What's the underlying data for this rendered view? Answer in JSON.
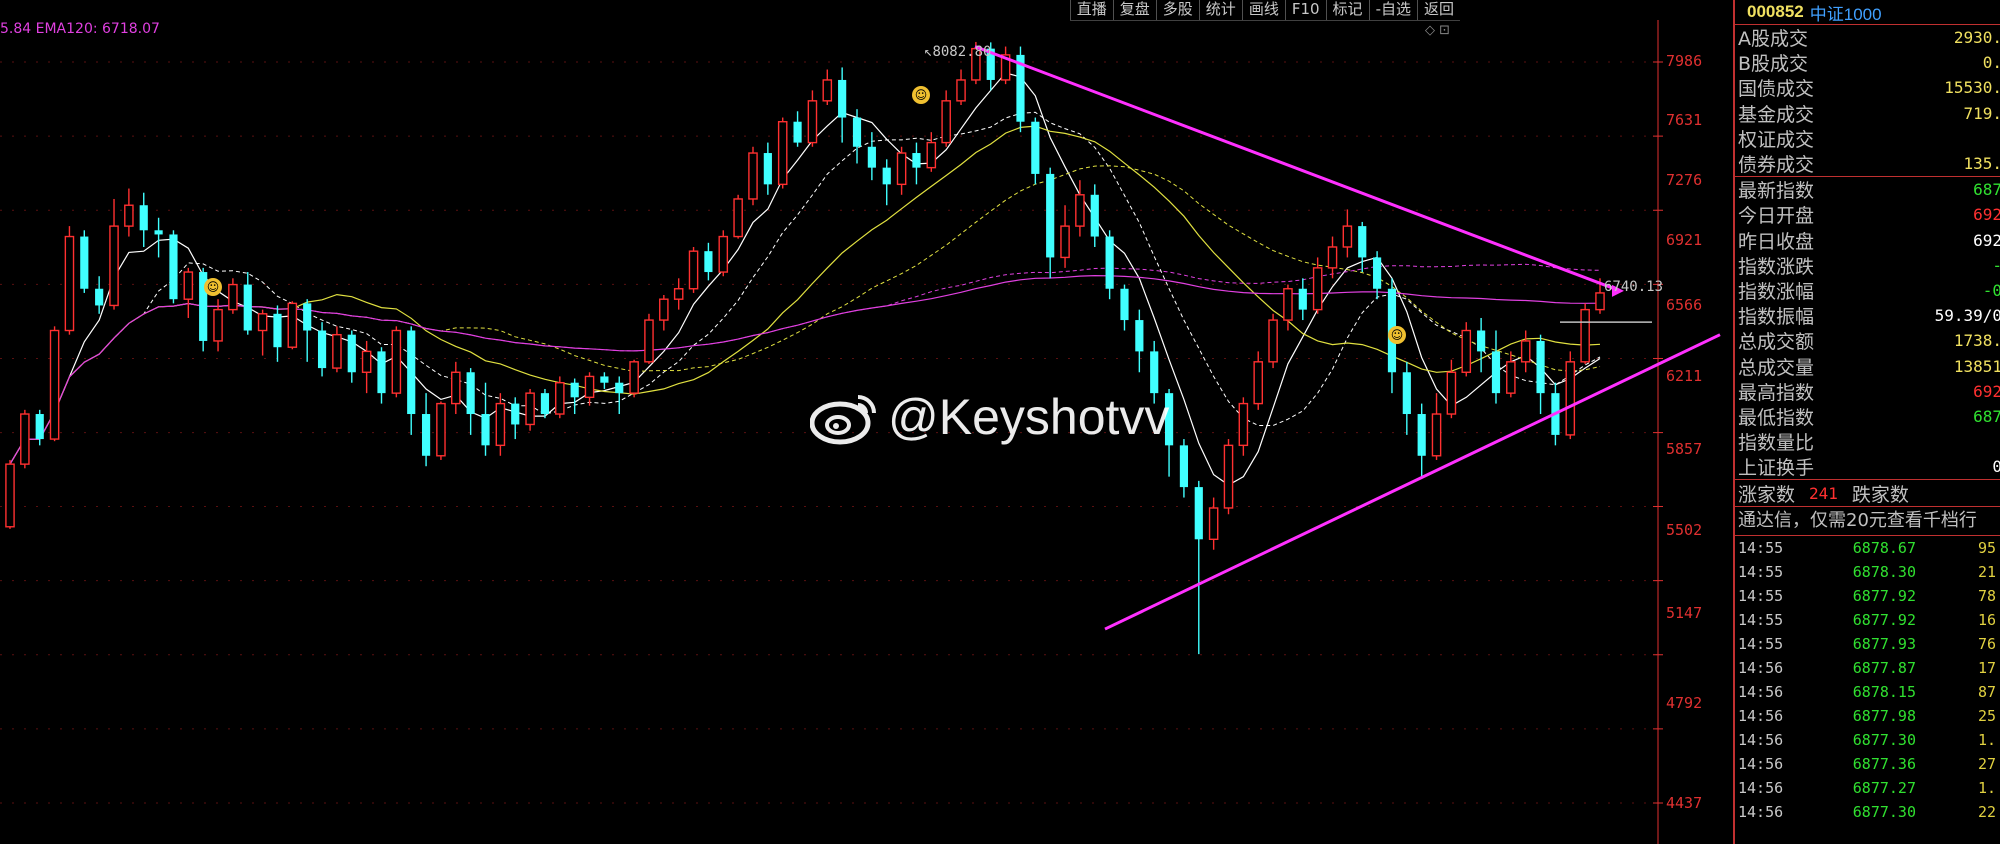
{
  "toolbar": {
    "items": [
      "直播",
      "复盘",
      "多股",
      "统计",
      "画线",
      "F10",
      "标记",
      "-自选",
      "返回"
    ]
  },
  "ema_label": "5.84  EMA120: 6718.07",
  "y_axis_labels": [
    "7986",
    "7631",
    "7276",
    "6921",
    "6566",
    "6211",
    "5857",
    "5502",
    "5147",
    "4792",
    "4437"
  ],
  "peak_label": "8082.80",
  "last_price_label": "6740.13",
  "watermark": "@Keyshotvv",
  "colors": {
    "up": "#ff3030",
    "down": "#40ffff",
    "ma_white": "#ffffff",
    "ma_yellow": "#e0e040",
    "ma_magenta": "#e040e0",
    "trendline": "#ff30ff",
    "axis": "#e03030"
  },
  "panel": {
    "code": "000852",
    "name": "中证1000",
    "stats": [
      {
        "label": "A股成交",
        "value": "2930.",
        "color": "#f0e060"
      },
      {
        "label": "B股成交",
        "value": "0.",
        "color": "#f0e060"
      },
      {
        "label": "国债成交",
        "value": "15530.",
        "color": "#f0e060"
      },
      {
        "label": "基金成交",
        "value": "719.",
        "color": "#f0e060"
      },
      {
        "label": "权证成交",
        "value": "",
        "color": "#f0e060"
      },
      {
        "label": "债券成交",
        "value": "135.",
        "color": "#f0e060"
      },
      {
        "label": "最新指数",
        "value": "687",
        "color": "#30e030"
      },
      {
        "label": "今日开盘",
        "value": "692",
        "color": "#ff3030"
      },
      {
        "label": "昨日收盘",
        "value": "692",
        "color": "#ffffff"
      },
      {
        "label": "指数涨跌",
        "value": "-",
        "color": "#30e030"
      },
      {
        "label": "指数涨幅",
        "value": "-0",
        "color": "#30e030"
      },
      {
        "label": "指数振幅",
        "value": "59.39/0",
        "color": "#ffffff"
      },
      {
        "label": "总成交额",
        "value": "1738.",
        "color": "#f0e060"
      },
      {
        "label": "总成交量",
        "value": "13851",
        "color": "#f0e060"
      },
      {
        "label": "最高指数",
        "value": "692",
        "color": "#ff3030"
      },
      {
        "label": "最低指数",
        "value": "687",
        "color": "#30e030"
      },
      {
        "label": "指数量比",
        "value": "",
        "color": "#ffffff"
      },
      {
        "label": "上证换手",
        "value": "0",
        "color": "#ffffff"
      }
    ],
    "rise_label": "涨家数",
    "rise_value": "241",
    "fall_label": "跌家数",
    "notice": "通达信，仅需20元查看千档行",
    "ticks": [
      {
        "time": "14:55",
        "price": "6878.67",
        "vol": "95"
      },
      {
        "time": "14:55",
        "price": "6878.30",
        "vol": "21"
      },
      {
        "time": "14:55",
        "price": "6877.92",
        "vol": "78"
      },
      {
        "time": "14:55",
        "price": "6877.92",
        "vol": "16"
      },
      {
        "time": "14:55",
        "price": "6877.93",
        "vol": "76"
      },
      {
        "time": "14:56",
        "price": "6877.87",
        "vol": "17"
      },
      {
        "time": "14:56",
        "price": "6878.15",
        "vol": "87"
      },
      {
        "time": "14:56",
        "price": "6877.98",
        "vol": "25"
      },
      {
        "time": "14:56",
        "price": "6877.30",
        "vol": "1."
      },
      {
        "time": "14:56",
        "price": "6877.36",
        "vol": "27"
      },
      {
        "time": "14:56",
        "price": "6877.27",
        "vol": "1."
      },
      {
        "time": "14:56",
        "price": "6877.30",
        "vol": "22"
      }
    ]
  },
  "chart_data": {
    "type": "candlestick",
    "ylim": [
      4400,
      8150
    ],
    "yticks": [
      7986,
      7631,
      7276,
      6921,
      6566,
      6211,
      5857,
      5502,
      5147,
      4792,
      4437
    ],
    "candles": [
      [
        5760,
        6060,
        5750,
        6080
      ],
      [
        6060,
        6300,
        6040,
        6320
      ],
      [
        6300,
        6180,
        6150,
        6320
      ],
      [
        6180,
        6700,
        6170,
        6720
      ],
      [
        6700,
        7150,
        6680,
        7200
      ],
      [
        7150,
        6900,
        6880,
        7180
      ],
      [
        6900,
        6820,
        6780,
        6960
      ],
      [
        6820,
        7200,
        6800,
        7330
      ],
      [
        7200,
        7300,
        7150,
        7380
      ],
      [
        7300,
        7180,
        7100,
        7360
      ],
      [
        7180,
        7160,
        7050,
        7240
      ],
      [
        7160,
        6850,
        6830,
        7180
      ],
      [
        6850,
        6980,
        6760,
        7000
      ],
      [
        6980,
        6650,
        6600,
        7000
      ],
      [
        6650,
        6800,
        6600,
        6850
      ],
      [
        6800,
        6920,
        6780,
        6950
      ],
      [
        6920,
        6700,
        6680,
        6980
      ],
      [
        6700,
        6780,
        6580,
        6800
      ],
      [
        6780,
        6620,
        6550,
        6820
      ],
      [
        6620,
        6830,
        6610,
        6840
      ],
      [
        6830,
        6700,
        6550,
        6850
      ],
      [
        6700,
        6520,
        6480,
        6740
      ],
      [
        6520,
        6680,
        6500,
        6720
      ],
      [
        6680,
        6500,
        6450,
        6700
      ],
      [
        6500,
        6600,
        6400,
        6650
      ],
      [
        6600,
        6400,
        6350,
        6620
      ],
      [
        6400,
        6700,
        6380,
        6720
      ],
      [
        6700,
        6300,
        6200,
        6720
      ],
      [
        6300,
        6100,
        6050,
        6400
      ],
      [
        6100,
        6350,
        6080,
        6360
      ],
      [
        6350,
        6500,
        6300,
        6550
      ],
      [
        6500,
        6300,
        6200,
        6520
      ],
      [
        6300,
        6150,
        6100,
        6450
      ],
      [
        6150,
        6350,
        6100,
        6400
      ],
      [
        6350,
        6250,
        6180,
        6380
      ],
      [
        6250,
        6400,
        6220,
        6420
      ],
      [
        6400,
        6300,
        6280,
        6420
      ],
      [
        6300,
        6450,
        6280,
        6480
      ],
      [
        6450,
        6380,
        6300,
        6470
      ],
      [
        6380,
        6480,
        6340,
        6500
      ],
      [
        6480,
        6450,
        6420,
        6500
      ],
      [
        6450,
        6400,
        6300,
        6480
      ],
      [
        6400,
        6550,
        6380,
        6560
      ],
      [
        6550,
        6750,
        6540,
        6780
      ],
      [
        6750,
        6850,
        6700,
        6870
      ],
      [
        6850,
        6900,
        6800,
        6950
      ],
      [
        6900,
        7080,
        6880,
        7100
      ],
      [
        7080,
        6980,
        6940,
        7120
      ],
      [
        6980,
        7150,
        6960,
        7180
      ],
      [
        7150,
        7330,
        7140,
        7350
      ],
      [
        7330,
        7550,
        7300,
        7580
      ],
      [
        7550,
        7400,
        7350,
        7600
      ],
      [
        7400,
        7700,
        7380,
        7720
      ],
      [
        7700,
        7600,
        7580,
        7750
      ],
      [
        7600,
        7800,
        7580,
        7850
      ],
      [
        7800,
        7900,
        7780,
        7950
      ],
      [
        7900,
        7720,
        7600,
        7960
      ],
      [
        7720,
        7580,
        7500,
        7760
      ],
      [
        7580,
        7480,
        7420,
        7650
      ],
      [
        7480,
        7400,
        7300,
        7520
      ],
      [
        7400,
        7550,
        7350,
        7580
      ],
      [
        7550,
        7480,
        7400,
        7600
      ],
      [
        7480,
        7600,
        7460,
        7650
      ],
      [
        7600,
        7800,
        7580,
        7850
      ],
      [
        7800,
        7900,
        7780,
        7950
      ],
      [
        7900,
        8050,
        7880,
        8082
      ],
      [
        8050,
        7900,
        7850,
        8080
      ],
      [
        7900,
        8020,
        7880,
        8060
      ],
      [
        8020,
        7700,
        7650,
        8060
      ],
      [
        7700,
        7450,
        7400,
        7720
      ],
      [
        7450,
        7050,
        6950,
        7480
      ],
      [
        7050,
        7200,
        7000,
        7300
      ],
      [
        7200,
        7350,
        7150,
        7420
      ],
      [
        7350,
        7150,
        7100,
        7400
      ],
      [
        7150,
        6900,
        6850,
        7180
      ],
      [
        6900,
        6750,
        6700,
        6920
      ],
      [
        6750,
        6600,
        6500,
        6800
      ],
      [
        6600,
        6400,
        6350,
        6650
      ],
      [
        6400,
        6150,
        6000,
        6420
      ],
      [
        6150,
        5950,
        5900,
        6180
      ],
      [
        5950,
        5700,
        5150,
        5980
      ],
      [
        5700,
        5850,
        5650,
        5900
      ],
      [
        5850,
        6150,
        5820,
        6180
      ],
      [
        6150,
        6350,
        6100,
        6380
      ],
      [
        6350,
        6550,
        6320,
        6600
      ],
      [
        6550,
        6750,
        6520,
        6780
      ],
      [
        6750,
        6900,
        6700,
        6920
      ],
      [
        6900,
        6800,
        6750,
        6950
      ],
      [
        6800,
        7000,
        6780,
        7050
      ],
      [
        7000,
        7100,
        6950,
        7150
      ],
      [
        7100,
        7200,
        7050,
        7280
      ],
      [
        7200,
        7050,
        6980,
        7220
      ],
      [
        7050,
        6900,
        6850,
        7080
      ],
      [
        6900,
        6500,
        6400,
        6950
      ],
      [
        6500,
        6300,
        6200,
        6550
      ],
      [
        6300,
        6100,
        6000,
        6350
      ],
      [
        6100,
        6300,
        6080,
        6400
      ],
      [
        6300,
        6500,
        6280,
        6560
      ],
      [
        6500,
        6700,
        6480,
        6740
      ],
      [
        6700,
        6600,
        6500,
        6760
      ],
      [
        6600,
        6400,
        6350,
        6700
      ],
      [
        6400,
        6550,
        6380,
        6600
      ],
      [
        6550,
        6650,
        6500,
        6700
      ],
      [
        6650,
        6400,
        6300,
        6680
      ],
      [
        6400,
        6200,
        6150,
        6450
      ],
      [
        6200,
        6550,
        6180,
        6600
      ],
      [
        6550,
        6800,
        6540,
        6830
      ],
      [
        6800,
        6880,
        6780,
        6950
      ]
    ]
  }
}
